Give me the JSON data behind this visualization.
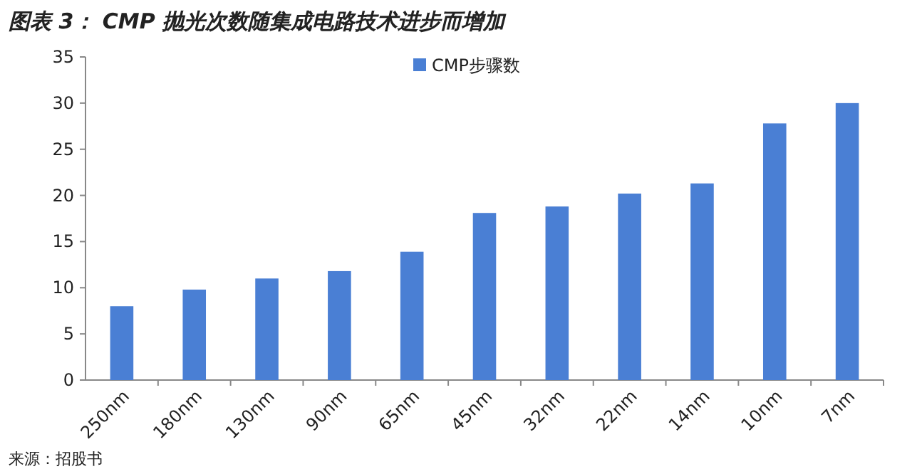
{
  "chart_data": {
    "type": "bar",
    "title": "图表 3： CMP 抛光次数随集成电路技术进步而增加",
    "categories": [
      "250nm",
      "180nm",
      "130nm",
      "90nm",
      "65nm",
      "45nm",
      "32nm",
      "22nm",
      "14nm",
      "10nm",
      "7nm"
    ],
    "series": [
      {
        "name": "CMP步骤数",
        "color": "#4a7fd4",
        "values": [
          8,
          9.8,
          11,
          11.8,
          13.9,
          18.1,
          18.8,
          20.2,
          21.3,
          27.8,
          30
        ]
      }
    ],
    "ylim": [
      0,
      35
    ],
    "yticks": [
      0,
      5,
      10,
      15,
      20,
      25,
      30,
      35
    ],
    "legend": "top",
    "grid": false,
    "annotations": [
      "来源：招股书"
    ]
  }
}
